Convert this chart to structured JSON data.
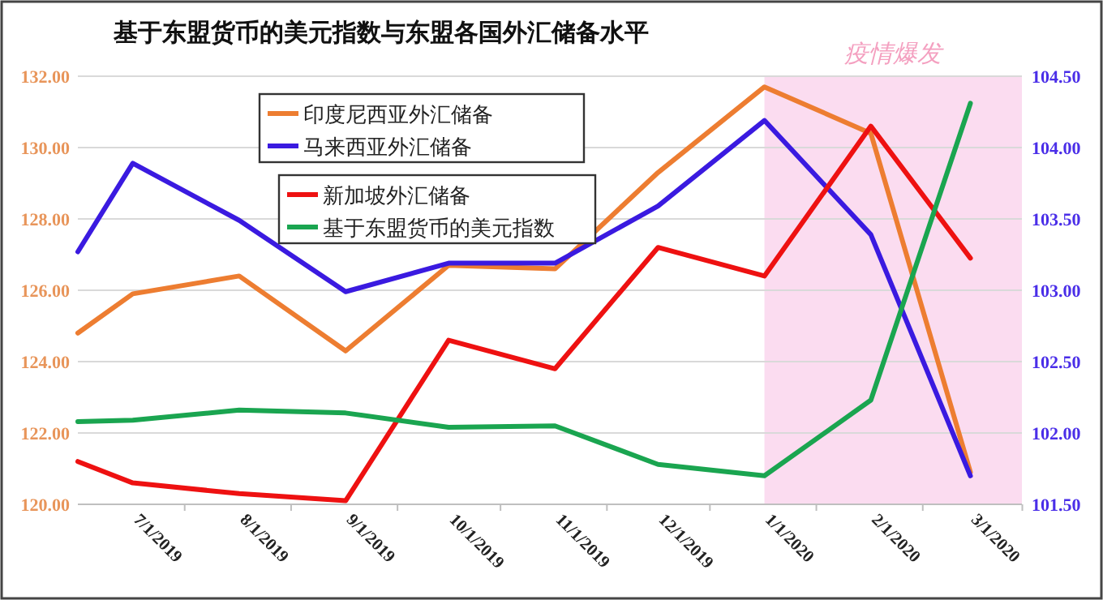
{
  "chart_data": {
    "type": "line",
    "title": "基于东盟货币的美元指数与东盟各国外汇储备水平",
    "x": [
      "2019-06-15",
      "2019-07-01",
      "2019-08-01",
      "2019-09-01",
      "2019-10-01",
      "2019-11-01",
      "2019-12-01",
      "2020-01-01",
      "2020-02-01",
      "2020-03-01"
    ],
    "xlim": [
      "2019-06-15",
      "2020-03-16"
    ],
    "xticks": [
      {
        "value": "2019-07-01",
        "label": "7/1/2019"
      },
      {
        "value": "2019-08-01",
        "label": "8/1/2019"
      },
      {
        "value": "2019-09-01",
        "label": "9/1/2019"
      },
      {
        "value": "2019-10-01",
        "label": "10/1/2019"
      },
      {
        "value": "2019-11-01",
        "label": "11/1/2019"
      },
      {
        "value": "2019-12-01",
        "label": "12/1/2019"
      },
      {
        "value": "2020-01-01",
        "label": "1/1/2020"
      },
      {
        "value": "2020-02-01",
        "label": "2/1/2020"
      },
      {
        "value": "2020-03-01",
        "label": "3/1/2020"
      }
    ],
    "ylim": [
      120,
      132
    ],
    "yticks": [
      {
        "value": 120,
        "label": "120.00"
      },
      {
        "value": 122,
        "label": "122.00"
      },
      {
        "value": 124,
        "label": "124.00"
      },
      {
        "value": 126,
        "label": "126.00"
      },
      {
        "value": 128,
        "label": "128.00"
      },
      {
        "value": 130,
        "label": "130.00"
      },
      {
        "value": 132,
        "label": "132.00"
      }
    ],
    "y2lim": [
      101.5,
      104.5
    ],
    "y2ticks": [
      {
        "value": 101.5,
        "label": "101.50"
      },
      {
        "value": 102,
        "label": "102.00"
      },
      {
        "value": 102.5,
        "label": "102.50"
      },
      {
        "value": 103,
        "label": "103.00"
      },
      {
        "value": 103.5,
        "label": "103.50"
      },
      {
        "value": 104,
        "label": "104.00"
      },
      {
        "value": 104.5,
        "label": "104.50"
      }
    ],
    "series": [
      {
        "name": "印度尼西亚外汇储备",
        "color": "#ed7d31",
        "values": [
          124.8,
          125.9,
          126.4,
          124.3,
          126.7,
          126.6,
          129.3,
          131.7,
          130.4,
          120.9
        ]
      },
      {
        "name": "马来西亚外汇储备",
        "color": "#3a1ae0",
        "axis": "y2",
        "values": [
          103.27,
          103.89,
          103.49,
          102.99,
          103.19,
          103.19,
          103.59,
          104.19,
          103.39,
          101.7
        ]
      },
      {
        "name": "新加坡外汇储备",
        "color": "#ee1111",
        "values": [
          121.2,
          120.6,
          120.3,
          120.1,
          124.6,
          123.8,
          127.2,
          126.4,
          130.6,
          126.9
        ]
      },
      {
        "name": "基于东盟货币的美元指数",
        "color": "#1aa550",
        "axis": "y2",
        "values": [
          102.08,
          102.09,
          102.16,
          102.14,
          102.04,
          102.05,
          101.78,
          101.7,
          102.23,
          104.31
        ]
      }
    ],
    "bands": [
      {
        "axis": "x",
        "from": "2020-01-01",
        "to": "2020-03-16",
        "label": "疫情爆发",
        "color": "#fbdcf0"
      }
    ],
    "grid": "y",
    "legend": "top",
    "line_style": "solid",
    "marker": "none"
  }
}
